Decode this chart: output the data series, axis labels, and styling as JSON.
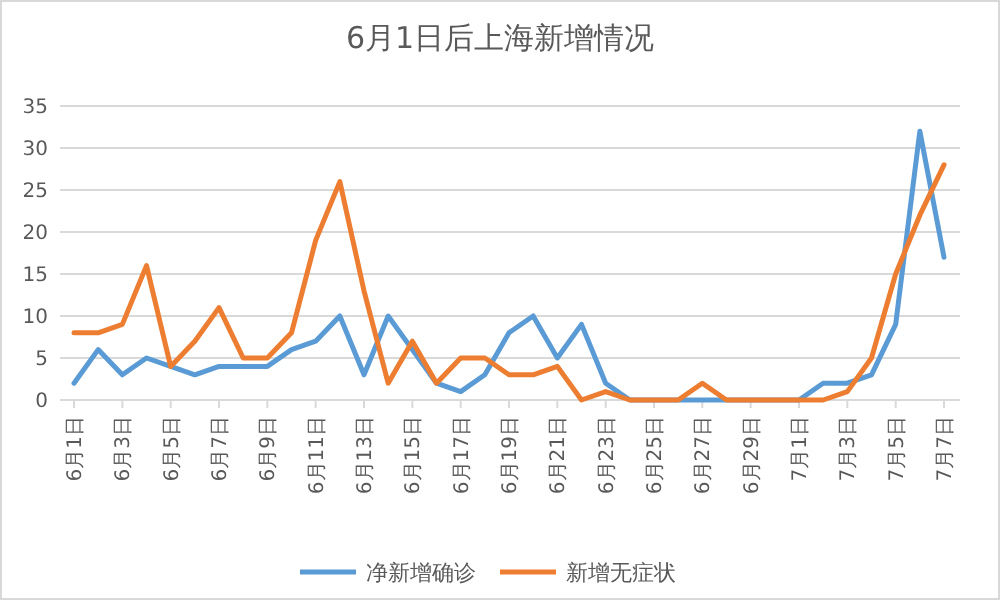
{
  "chart_data": {
    "type": "line",
    "title": "6月1日后上海新增情况",
    "categories": [
      "6月1日",
      null,
      "6月3日",
      null,
      "6月5日",
      null,
      "6月7日",
      null,
      "6月9日",
      null,
      "6月11日",
      null,
      "6月13日",
      null,
      "6月15日",
      null,
      "6月17日",
      null,
      "6月19日",
      null,
      "6月21日",
      null,
      "6月23日",
      null,
      "6月25日",
      null,
      "6月27日",
      null,
      "6月29日",
      null,
      "7月1日",
      null,
      "7月3日",
      null,
      "7月5日",
      null,
      "7月7日"
    ],
    "series": [
      {
        "name": "净新增确诊",
        "color": "#5b9bd5",
        "values": [
          2,
          6,
          3,
          5,
          4,
          3,
          4,
          4,
          4,
          6,
          7,
          10,
          3,
          10,
          6,
          2,
          1,
          3,
          8,
          10,
          5,
          9,
          2,
          0,
          0,
          0,
          0,
          0,
          0,
          0,
          0,
          2,
          2,
          3,
          9,
          32,
          17
        ]
      },
      {
        "name": "新增无症状",
        "color": "#ed7d31",
        "values": [
          8,
          8,
          9,
          16,
          4,
          7,
          11,
          5,
          5,
          8,
          19,
          26,
          13,
          2,
          7,
          2,
          5,
          5,
          3,
          3,
          4,
          0,
          1,
          0,
          0,
          0,
          2,
          0,
          0,
          0,
          0,
          0,
          1,
          5,
          15,
          22,
          28
        ]
      }
    ],
    "ylim": [
      0,
      35
    ],
    "yticks": [
      0,
      5,
      10,
      15,
      20,
      25,
      30,
      35
    ],
    "grid": "y",
    "legend": "bottom",
    "marker": "none",
    "line_style": "solid"
  }
}
